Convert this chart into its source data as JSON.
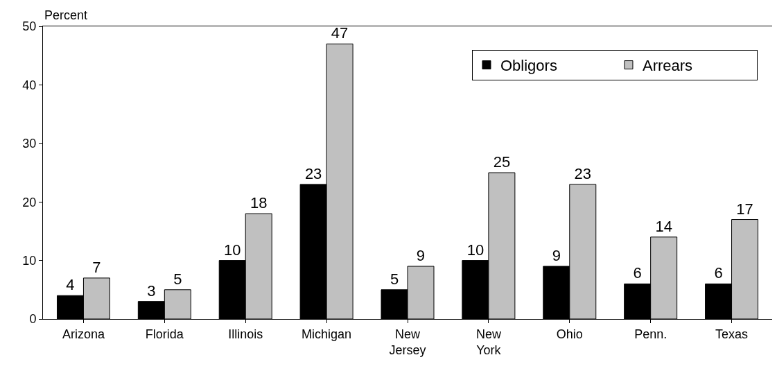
{
  "chart_data": {
    "type": "bar",
    "ylabel": "Percent",
    "categories": [
      "Arizona",
      "Florida",
      "Illinois",
      "Michigan",
      "New Jersey",
      "New York",
      "Ohio",
      "Penn.",
      "Texas"
    ],
    "series": [
      {
        "name": "Obligors",
        "color": "#000000",
        "values": [
          4,
          3,
          10,
          23,
          5,
          10,
          9,
          6,
          6
        ]
      },
      {
        "name": "Arrears",
        "color": "#c0c0c0",
        "values": [
          7,
          5,
          18,
          47,
          9,
          25,
          23,
          14,
          17
        ]
      }
    ],
    "ylim": [
      0,
      50
    ],
    "yticks": [
      0,
      10,
      20,
      30,
      40,
      50
    ],
    "grid": false,
    "legend": "top right",
    "data_labels": true
  }
}
